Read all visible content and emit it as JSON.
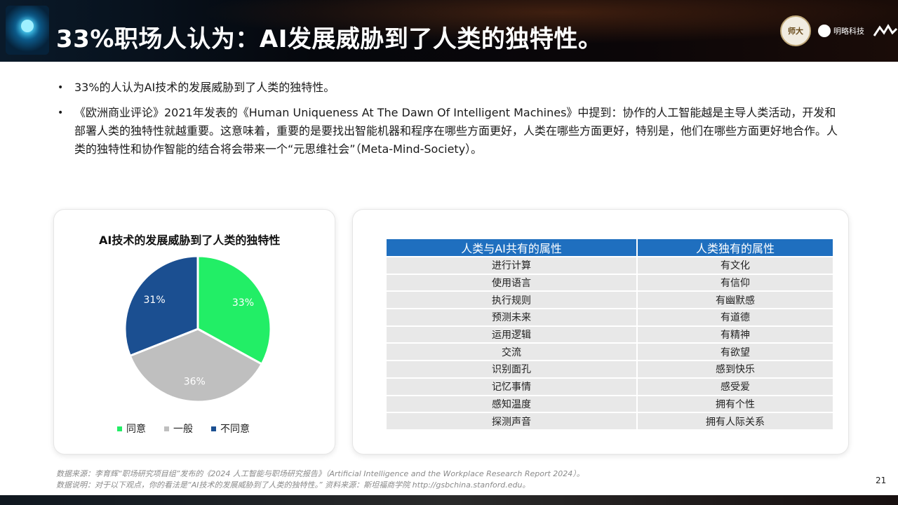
{
  "header": {
    "title": "33%职场人认为：AI发展威胁到了人类的独特性。",
    "brand_seal_text": "师大",
    "brand_name": "明略科技"
  },
  "bullets": [
    "33%的人认为AI技术的发展威胁到了人类的独特性。",
    "《欧洲商业评论》2021年发表的《Human Uniqueness At The Dawn Of Intelligent Machines》中提到：协作的人工智能越是主导人类活动，开发和部署人类的独特性就越重要。这意味着，重要的是要找出智能机器和程序在哪些方面更好，人类在哪些方面更好，特别是，他们在哪些方面更好地合作。人类的独特性和协作智能的结合将会带来一个“元思维社会”（Meta-Mind-Society）。"
  ],
  "chart_data": {
    "type": "pie",
    "title": "AI技术的发展威胁到了人类的独特性",
    "categories": [
      "同意",
      "一般",
      "不同意"
    ],
    "values": [
      33,
      36,
      31
    ],
    "labels": [
      "33%",
      "36%",
      "31%"
    ],
    "colors": [
      "#22ee66",
      "#bfbfbf",
      "#1b4f91"
    ],
    "legend_position": "bottom"
  },
  "table": {
    "headers": [
      "人类与AI共有的属性",
      "人类独有的属性"
    ],
    "rows": [
      [
        "进行计算",
        "有文化"
      ],
      [
        "使用语言",
        "有信仰"
      ],
      [
        "执行规则",
        "有幽默感"
      ],
      [
        "预测未来",
        "有道德"
      ],
      [
        "运用逻辑",
        "有精神"
      ],
      [
        "交流",
        "有欲望"
      ],
      [
        "识别面孔",
        "感到快乐"
      ],
      [
        "记忆事情",
        "感受爱"
      ],
      [
        "感知温度",
        "拥有个性"
      ],
      [
        "探测声音",
        "拥有人际关系"
      ]
    ]
  },
  "footer": {
    "line1": "数据来源：李育辉“职场研究项目组”发布的《2024 人工智能与职场研究报告》（Artificial Intelligence and the Workplace Research Report 2024）。",
    "line2": "数据说明：对于以下观点，你的看法是“AI技术的发展威胁到了人类的独特性。” 资料来源：斯坦福商学院 http://gsbchina.stanford.edu。"
  },
  "page_number": "21"
}
